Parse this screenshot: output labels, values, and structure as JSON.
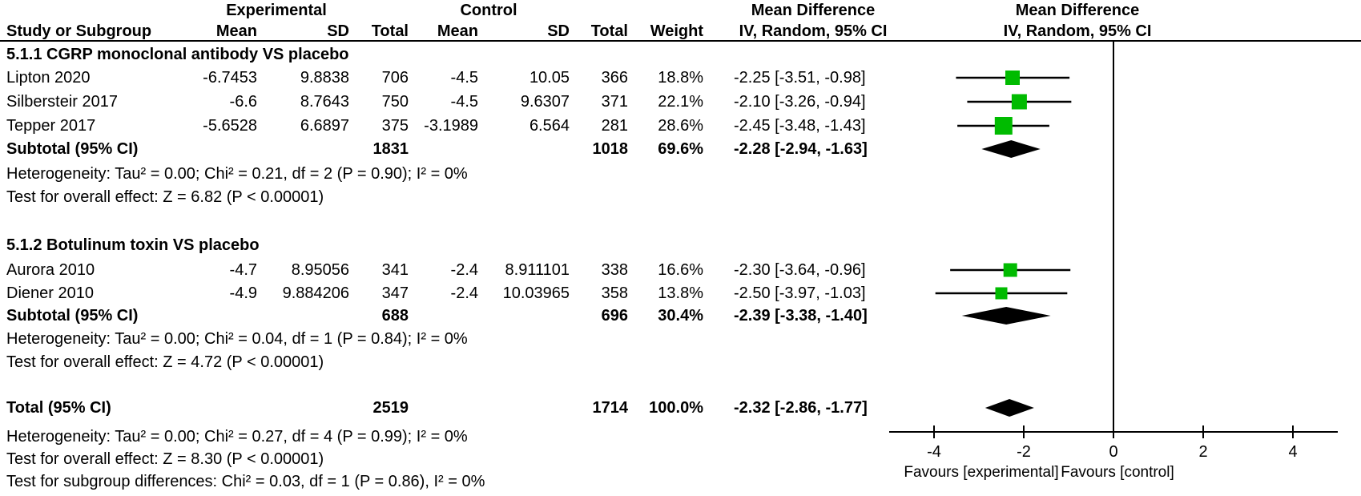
{
  "header": {
    "group1": "Experimental",
    "group2": "Control",
    "md1": "Mean Difference",
    "md2": "Mean Difference",
    "method1": "IV, Random, 95% CI",
    "method2": "IV, Random, 95% CI",
    "col_study": "Study or Subgroup",
    "col_mean1": "Mean",
    "col_sd1": "SD",
    "col_total1": "Total",
    "col_mean2": "Mean",
    "col_sd2": "SD",
    "col_total2": "Total",
    "col_weight": "Weight"
  },
  "chart_data": {
    "type": "forest",
    "effect_measure": "Mean Difference, IV, Random, 95% CI",
    "xlim": [
      -5,
      5
    ],
    "ticks": [
      -4,
      -2,
      0,
      2,
      4
    ],
    "favours_left": "Favours [experimental]",
    "favours_right": "Favours [control]",
    "marker_color": "#00bb00",
    "groups": [
      {
        "label": "5.1.1 CGRP monoclonal antibody VS placebo",
        "studies": [
          {
            "name": "Lipton 2020",
            "exp_mean": "-6.7453",
            "exp_sd": "9.8838",
            "exp_total": "706",
            "ctrl_mean": "-4.5",
            "ctrl_sd": "10.05",
            "ctrl_total": "366",
            "weight": "18.8%",
            "ci_text": "-2.25 [-3.51, -0.98]",
            "est": -2.25,
            "lo": -3.51,
            "hi": -0.98,
            "weight_pct": 18.8
          },
          {
            "name": "Silbersteir 2017",
            "exp_mean": "-6.6",
            "exp_sd": "8.7643",
            "exp_total": "750",
            "ctrl_mean": "-4.5",
            "ctrl_sd": "9.6307",
            "ctrl_total": "371",
            "weight": "22.1%",
            "ci_text": "-2.10 [-3.26, -0.94]",
            "est": -2.1,
            "lo": -3.26,
            "hi": -0.94,
            "weight_pct": 22.1
          },
          {
            "name": "Tepper 2017",
            "exp_mean": "-5.6528",
            "exp_sd": "6.6897",
            "exp_total": "375",
            "ctrl_mean": "-3.1989",
            "ctrl_sd": "6.564",
            "ctrl_total": "281",
            "weight": "28.6%",
            "ci_text": "-2.45 [-3.48, -1.43]",
            "est": -2.45,
            "lo": -3.48,
            "hi": -1.43,
            "weight_pct": 28.6
          }
        ],
        "subtotal": {
          "label": "Subtotal (95% CI)",
          "exp_total": "1831",
          "ctrl_total": "1018",
          "weight": "69.6%",
          "ci_text": "-2.28 [-2.94, -1.63]",
          "est": -2.28,
          "lo": -2.94,
          "hi": -1.63
        },
        "notes": [
          "Heterogeneity: Tau² = 0.00; Chi² = 0.21, df = 2 (P = 0.90); I² = 0%",
          "Test for overall effect: Z = 6.82 (P < 0.00001)"
        ]
      },
      {
        "label": "5.1.2 Botulinum toxin VS placebo",
        "studies": [
          {
            "name": "Aurora 2010",
            "exp_mean": "-4.7",
            "exp_sd": "8.95056",
            "exp_total": "341",
            "ctrl_mean": "-2.4",
            "ctrl_sd": "8.911101",
            "ctrl_total": "338",
            "weight": "16.6%",
            "ci_text": "-2.30 [-3.64, -0.96]",
            "est": -2.3,
            "lo": -3.64,
            "hi": -0.96,
            "weight_pct": 16.6
          },
          {
            "name": "Diener 2010",
            "exp_mean": "-4.9",
            "exp_sd": "9.884206",
            "exp_total": "347",
            "ctrl_mean": "-2.4",
            "ctrl_sd": "10.03965",
            "ctrl_total": "358",
            "weight": "13.8%",
            "ci_text": "-2.50 [-3.97, -1.03]",
            "est": -2.5,
            "lo": -3.97,
            "hi": -1.03,
            "weight_pct": 13.8
          }
        ],
        "subtotal": {
          "label": "Subtotal (95% CI)",
          "exp_total": "688",
          "ctrl_total": "696",
          "weight": "30.4%",
          "ci_text": "-2.39 [-3.38, -1.40]",
          "est": -2.39,
          "lo": -3.38,
          "hi": -1.4
        },
        "notes": [
          "Heterogeneity: Tau² = 0.00; Chi² = 0.04, df = 1 (P = 0.84); I² = 0%",
          "Test for overall effect: Z = 4.72 (P < 0.00001)"
        ]
      }
    ],
    "total": {
      "label": "Total (95% CI)",
      "exp_total": "2519",
      "ctrl_total": "1714",
      "weight": "100.0%",
      "ci_text": "-2.32 [-2.86, -1.77]",
      "est": -2.32,
      "lo": -2.86,
      "hi": -1.77
    },
    "total_notes": [
      "Heterogeneity: Tau² = 0.00; Chi² = 0.27, df = 4 (P = 0.99); I² = 0%",
      "Test for overall effect: Z = 8.30 (P < 0.00001)",
      "Test for subgroup differences: Chi² = 0.03, df = 1 (P = 0.86), I² = 0%"
    ]
  }
}
